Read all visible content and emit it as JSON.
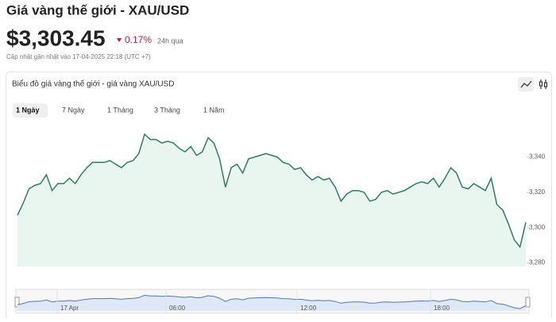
{
  "header": {
    "title": "Giá vàng thế giới - XAU/USD",
    "price": "$3,303.45",
    "change": "0.17%",
    "change_period": "24h qua",
    "updated": "Cập nhật gần nhất vào 17-04-2025 22:18 (UTC +7)"
  },
  "panel": {
    "title": "Biểu đồ giá vàng thế giới - giá vàng XAU/USD",
    "tabs": [
      "1 Ngày",
      "7 Ngày",
      "1 Tháng",
      "3 Tháng",
      "1 Năm"
    ]
  },
  "chart_data": {
    "type": "line",
    "color": "#2f7d60",
    "fill": "#e9f6ef",
    "values": [
      3307,
      3314,
      3322,
      3324,
      3325,
      3330,
      3321,
      3325,
      3325,
      3328,
      3325,
      3330,
      3334,
      3337,
      3337,
      3337,
      3338,
      3336,
      3334,
      3337,
      3338,
      3342,
      3353,
      3350,
      3350,
      3348,
      3349,
      3348,
      3345,
      3343,
      3346,
      3341,
      3343,
      3351,
      3348,
      3339,
      3323,
      3334,
      3336,
      3331,
      3339,
      3340,
      3341,
      3342,
      3341,
      3340,
      3337,
      3336,
      3333,
      3334,
      3330,
      3327,
      3329,
      3327,
      3328,
      3323,
      3315,
      3319,
      3321,
      3321,
      3320,
      3315,
      3316,
      3320,
      3321,
      3319,
      3320,
      3321,
      3323,
      3325,
      3326,
      3325,
      3328,
      3323,
      3328,
      3334,
      3331,
      3323,
      3322,
      3325,
      3323,
      3321,
      3328,
      3313,
      3310,
      3302,
      3293,
      3289,
      3303
    ],
    "ylim": [
      3278,
      3366
    ],
    "yticks": [
      {
        "value": 3280,
        "label": "3,280"
      },
      {
        "value": 3300,
        "label": "3,300"
      },
      {
        "value": 3320,
        "label": "3,320"
      },
      {
        "value": 3340,
        "label": "3,340"
      }
    ]
  },
  "navigator": {
    "labels": [
      "17 Apr",
      "06:00",
      "12:00",
      "18:00"
    ]
  }
}
